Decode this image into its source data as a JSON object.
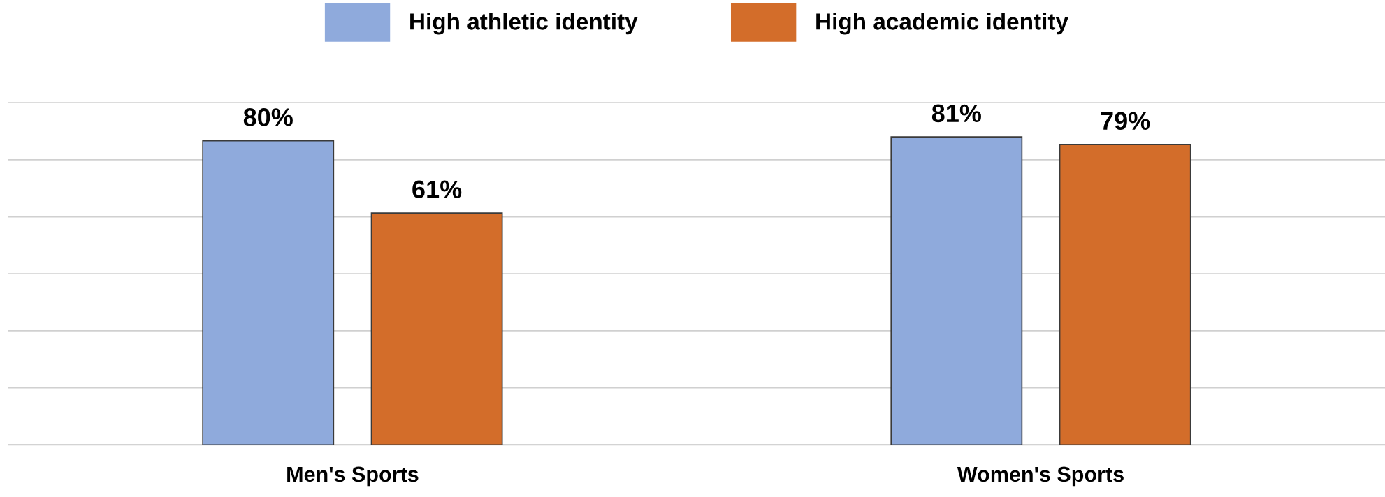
{
  "chart_data": {
    "type": "bar",
    "categories": [
      "Men's Sports",
      "Women's Sports"
    ],
    "series": [
      {
        "name": "High athletic identity",
        "color": "#8faadc",
        "values": [
          80,
          81
        ],
        "value_labels": [
          "80%",
          "81%"
        ]
      },
      {
        "name": "High academic identity",
        "color": "#d36d2a",
        "values": [
          61,
          79
        ],
        "value_labels": [
          "61%",
          "79%"
        ]
      }
    ],
    "tick_labels": "x",
    "grid": "y",
    "legend": "top"
  }
}
